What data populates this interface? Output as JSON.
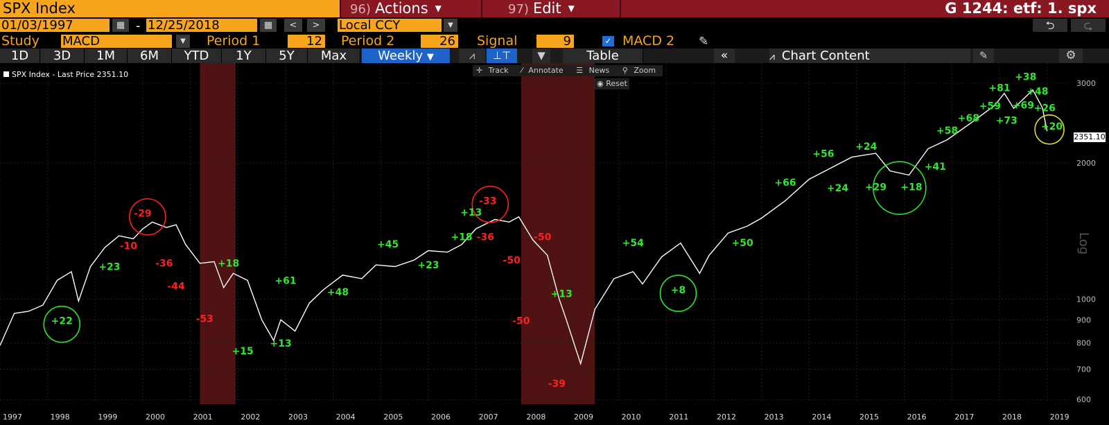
{
  "titlebar": {
    "ticker": "SPX Index",
    "actions_num": "96)",
    "actions_label": "Actions",
    "edit_num": "97)",
    "edit_label": "Edit",
    "code": "G 1244: etf: 1. spx"
  },
  "dates": {
    "start": "01/03/1997",
    "dash": "-",
    "end": "12/25/2018",
    "currency": "Local CCY"
  },
  "study": {
    "label": "Study",
    "value": "MACD",
    "period1_label": "Period 1",
    "period1_value": "12",
    "period2_label": "Period 2",
    "period2_value": "26",
    "signal_label": "Signal",
    "signal_value": "9",
    "macd2_label": "MACD 2"
  },
  "tabs": [
    "1D",
    "3D",
    "1M",
    "6M",
    "YTD",
    "1Y",
    "5Y",
    "Max"
  ],
  "frequency": "Weekly",
  "table_label": "Table",
  "chart_content_label": "Chart Content",
  "chart_tools": {
    "track": "Track",
    "annotate": "Annotate",
    "news": "News",
    "zoom": "Zoom",
    "reset": "Reset"
  },
  "legend": "SPX Index - Last Price 2351.10",
  "last_price_tag": "2351.10",
  "scale_label": "Log",
  "colors": {
    "accent_orange": "#f7a51c",
    "titlebar_red": "#8a1822",
    "active_blue": "#1d63c9",
    "up_green": "#2ee82e",
    "down_red": "#ff2020",
    "recession_band": "#6b1a1a"
  },
  "chart_data": {
    "type": "line",
    "series": [
      {
        "name": "SPX Index - Last Price",
        "x": [
          1997.0,
          1997.3,
          1997.6,
          1997.9,
          1998.2,
          1998.5,
          1998.65,
          1998.9,
          1999.2,
          1999.5,
          1999.8,
          2000.0,
          2000.2,
          2000.5,
          2000.7,
          2000.9,
          2001.2,
          2001.5,
          2001.7,
          2001.9,
          2002.2,
          2002.5,
          2002.75,
          2002.9,
          2003.2,
          2003.5,
          2003.8,
          2004.2,
          2004.6,
          2004.9,
          2005.3,
          2005.7,
          2006.0,
          2006.4,
          2006.7,
          2007.0,
          2007.4,
          2007.7,
          2007.9,
          2008.2,
          2008.5,
          2008.75,
          2008.9,
          2009.2,
          2009.5,
          2009.9,
          2010.3,
          2010.5,
          2010.9,
          2011.3,
          2011.7,
          2011.9,
          2012.3,
          2012.7,
          2013.0,
          2013.5,
          2014.0,
          2014.5,
          2014.9,
          2015.4,
          2015.7,
          2016.1,
          2016.5,
          2016.9,
          2017.4,
          2017.9,
          2018.1,
          2018.3,
          2018.7,
          2018.9,
          2019.0
        ],
        "y": [
          790,
          930,
          940,
          970,
          1100,
          1150,
          990,
          1180,
          1300,
          1380,
          1360,
          1430,
          1480,
          1440,
          1460,
          1320,
          1200,
          1210,
          1060,
          1140,
          1100,
          900,
          810,
          900,
          850,
          980,
          1050,
          1130,
          1110,
          1190,
          1180,
          1220,
          1280,
          1270,
          1320,
          1430,
          1500,
          1480,
          1520,
          1350,
          1250,
          1000,
          900,
          720,
          950,
          1110,
          1150,
          1080,
          1240,
          1330,
          1140,
          1250,
          1400,
          1450,
          1510,
          1650,
          1840,
          1960,
          2060,
          2100,
          1920,
          1880,
          2150,
          2250,
          2450,
          2680,
          2850,
          2640,
          2900,
          2650,
          2351
        ]
      }
    ],
    "yscale": "log",
    "ylim": [
      590,
      3300
    ],
    "xlim": [
      1997,
      2019.5
    ],
    "y_ticks": [
      "600",
      "700",
      "800",
      "900",
      "1000",
      "2000",
      "3000"
    ],
    "x_ticks": [
      "1997",
      "1998",
      "1999",
      "2000",
      "2001",
      "2002",
      "2003",
      "2004",
      "2005",
      "2006",
      "2007",
      "2008",
      "2009",
      "2010",
      "2011",
      "2012",
      "2013",
      "2014",
      "2015",
      "2016",
      "2017",
      "2018",
      "2019"
    ],
    "recessions": [
      [
        2001.2,
        2001.95
      ],
      [
        2007.95,
        2009.5
      ]
    ],
    "annotations": [
      {
        "text": "+22",
        "x": 1998.3,
        "y": 880,
        "color": "green"
      },
      {
        "text": "-29",
        "x": 2000.0,
        "y": 1520,
        "color": "red"
      },
      {
        "text": "-10",
        "x": 1999.7,
        "y": 1290,
        "color": "red"
      },
      {
        "text": "+23",
        "x": 1999.3,
        "y": 1160,
        "color": "green"
      },
      {
        "text": "-36",
        "x": 2000.45,
        "y": 1180,
        "color": "red"
      },
      {
        "text": "-44",
        "x": 2000.7,
        "y": 1050,
        "color": "red"
      },
      {
        "text": "+18",
        "x": 2001.8,
        "y": 1180,
        "color": "green"
      },
      {
        "text": "-53",
        "x": 2001.3,
        "y": 890,
        "color": "red"
      },
      {
        "text": "+15",
        "x": 2002.1,
        "y": 755,
        "color": "green"
      },
      {
        "text": "+13",
        "x": 2002.9,
        "y": 785,
        "color": "green"
      },
      {
        "text": "+61",
        "x": 2003.0,
        "y": 1080,
        "color": "green"
      },
      {
        "text": "+48",
        "x": 2004.1,
        "y": 1020,
        "color": "green"
      },
      {
        "text": "+45",
        "x": 2005.15,
        "y": 1300,
        "color": "green"
      },
      {
        "text": "+23",
        "x": 2006.0,
        "y": 1170,
        "color": "green"
      },
      {
        "text": "+13",
        "x": 2006.9,
        "y": 1530,
        "color": "green"
      },
      {
        "text": "-33",
        "x": 2007.25,
        "y": 1620,
        "color": "red"
      },
      {
        "text": "+18",
        "x": 2006.7,
        "y": 1350,
        "color": "green"
      },
      {
        "text": "-36",
        "x": 2007.2,
        "y": 1350,
        "color": "red"
      },
      {
        "text": "-50",
        "x": 2007.75,
        "y": 1200,
        "color": "red"
      },
      {
        "text": "-50",
        "x": 2008.4,
        "y": 1350,
        "color": "red"
      },
      {
        "text": "+13",
        "x": 2008.8,
        "y": 1010,
        "color": "green"
      },
      {
        "text": "-50",
        "x": 2007.95,
        "y": 880,
        "color": "red"
      },
      {
        "text": "-39",
        "x": 2008.7,
        "y": 640,
        "color": "red"
      },
      {
        "text": "+54",
        "x": 2010.3,
        "y": 1310,
        "color": "green"
      },
      {
        "text": "+8",
        "x": 2011.25,
        "y": 1030,
        "color": "green"
      },
      {
        "text": "+50",
        "x": 2012.6,
        "y": 1310,
        "color": "green"
      },
      {
        "text": "+66",
        "x": 2013.5,
        "y": 1780,
        "color": "green"
      },
      {
        "text": "+56",
        "x": 2014.3,
        "y": 2060,
        "color": "green"
      },
      {
        "text": "+24",
        "x": 2014.6,
        "y": 1730,
        "color": "green"
      },
      {
        "text": "+24",
        "x": 2015.2,
        "y": 2140,
        "color": "green"
      },
      {
        "text": "+29",
        "x": 2015.4,
        "y": 1740,
        "color": "green"
      },
      {
        "text": "+18",
        "x": 2016.15,
        "y": 1740,
        "color": "green"
      },
      {
        "text": "+41",
        "x": 2016.65,
        "y": 1930,
        "color": "green"
      },
      {
        "text": "+58",
        "x": 2016.9,
        "y": 2320,
        "color": "green"
      },
      {
        "text": "+68",
        "x": 2017.35,
        "y": 2470,
        "color": "green"
      },
      {
        "text": "+59",
        "x": 2017.8,
        "y": 2630,
        "color": "green"
      },
      {
        "text": "+81",
        "x": 2018.0,
        "y": 2880,
        "color": "green"
      },
      {
        "text": "+73",
        "x": 2018.15,
        "y": 2440,
        "color": "green"
      },
      {
        "text": "+38",
        "x": 2018.55,
        "y": 3050,
        "color": "green"
      },
      {
        "text": "+69",
        "x": 2018.5,
        "y": 2640,
        "color": "green"
      },
      {
        "text": "+48",
        "x": 2018.8,
        "y": 2830,
        "color": "green"
      },
      {
        "text": "+26",
        "x": 2018.95,
        "y": 2600,
        "color": "green"
      },
      {
        "text": "+20",
        "x": 2019.1,
        "y": 2370,
        "color": "green"
      }
    ],
    "circles": [
      {
        "x": 1998.3,
        "y": 880,
        "color": "green"
      },
      {
        "x": 2000.1,
        "y": 1520,
        "color": "red"
      },
      {
        "x": 2007.3,
        "y": 1620,
        "color": "red"
      },
      {
        "x": 2011.25,
        "y": 1030,
        "color": "green"
      },
      {
        "x": 2015.9,
        "y": 1760,
        "color": "green"
      },
      {
        "x": 2019.05,
        "y": 2370,
        "color": "yellow"
      }
    ]
  }
}
